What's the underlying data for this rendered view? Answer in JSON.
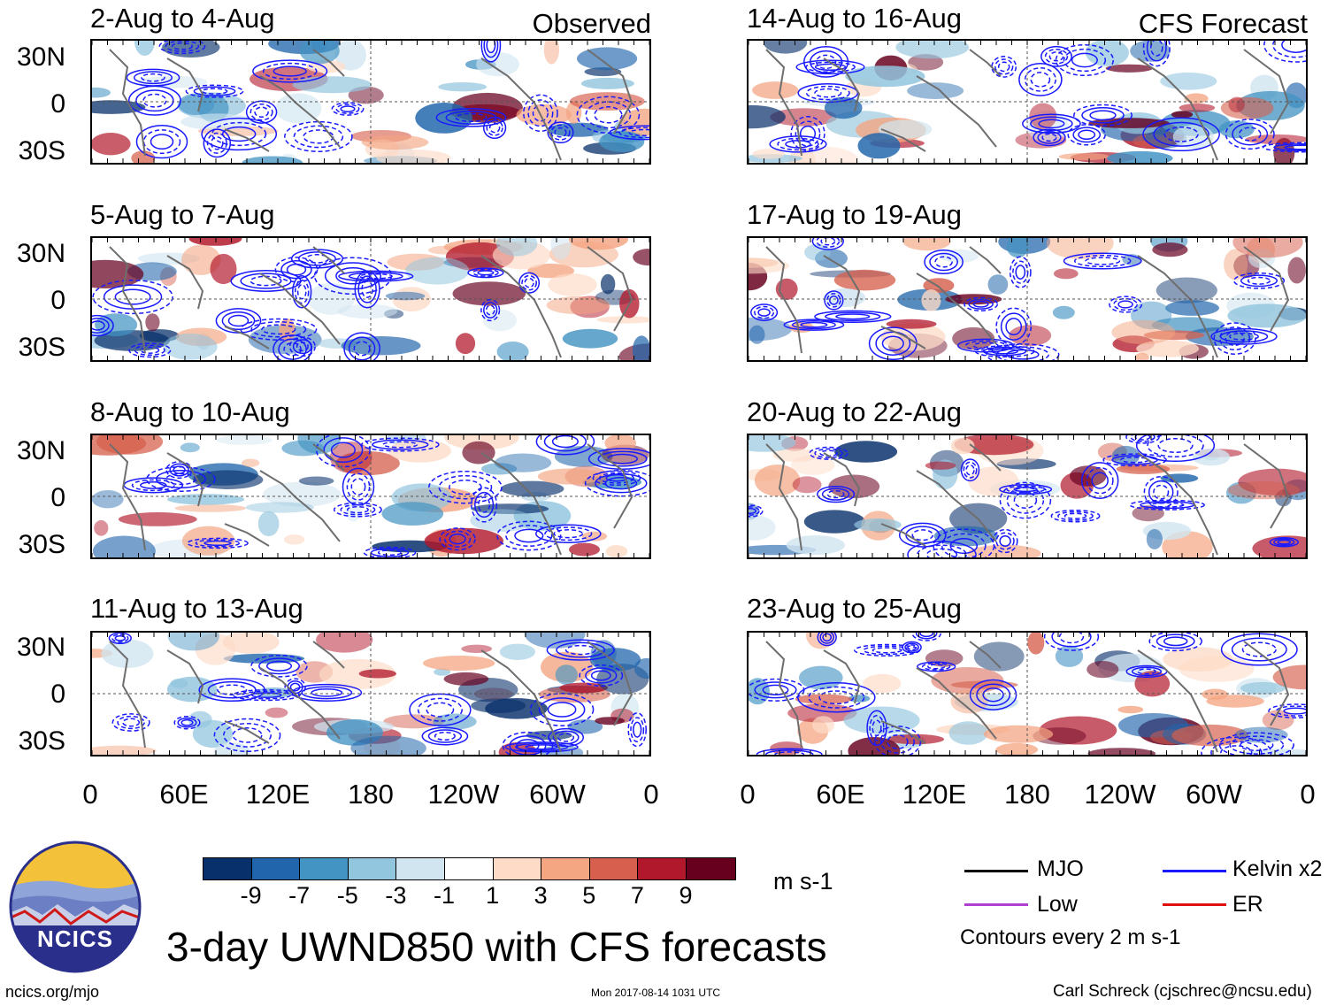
{
  "panels_observed": [
    {
      "title": "2-Aug to 4-Aug",
      "tag": "Observed"
    },
    {
      "title": "5-Aug to 7-Aug",
      "tag": ""
    },
    {
      "title": "8-Aug to 10-Aug",
      "tag": ""
    },
    {
      "title": "11-Aug to 13-Aug",
      "tag": ""
    }
  ],
  "panels_forecast": [
    {
      "title": "14-Aug to 16-Aug",
      "tag": "CFS Forecast"
    },
    {
      "title": "17-Aug to 19-Aug",
      "tag": ""
    },
    {
      "title": "20-Aug to 22-Aug",
      "tag": ""
    },
    {
      "title": "23-Aug to 25-Aug",
      "tag": ""
    }
  ],
  "lat_labels": [
    "30N",
    "0",
    "30S"
  ],
  "lon_labels": [
    "0",
    "60E",
    "120E",
    "180",
    "120W",
    "60W",
    "0"
  ],
  "colorbar": {
    "labels": [
      "-9",
      "-7",
      "-5",
      "-3",
      "-1",
      "1",
      "3",
      "5",
      "7",
      "9"
    ],
    "colors": [
      "#08306b",
      "#2166ac",
      "#4393c3",
      "#92c5de",
      "#d1e5f0",
      "#ffffff",
      "#fddbc7",
      "#f4a582",
      "#d6604d",
      "#b2182b",
      "#67001f"
    ],
    "units": "m s-1"
  },
  "legend": {
    "items": [
      {
        "label": "MJO",
        "color": "#000000"
      },
      {
        "label": "Kelvin x2",
        "color": "#1a1aff"
      },
      {
        "label": "Low",
        "color": "#b040d0"
      },
      {
        "label": "ER",
        "color": "#e01010"
      }
    ],
    "contours_note": "Contours every 2 m s-1"
  },
  "logo": {
    "text": "NCICS"
  },
  "main_title": "3-day UWND850 with CFS forecasts",
  "footer": {
    "url": "ncics.org/mjo",
    "timestamp": "Mon 2017-08-14 1031 UTC",
    "credit": "Carl Schreck (cjschrec@ncsu.edu)"
  }
}
